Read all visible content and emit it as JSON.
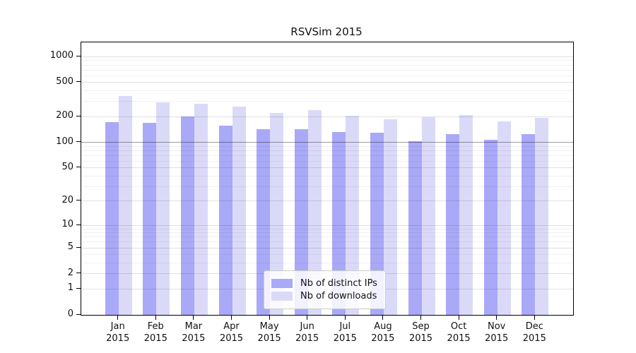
{
  "title": "RSVSim 2015",
  "chart_data": {
    "type": "bar",
    "title": "RSVSim 2015",
    "categories": [
      "Jan 2015",
      "Feb 2015",
      "Mar 2015",
      "Apr 2015",
      "May 2015",
      "Jun 2015",
      "Jul 2015",
      "Aug 2015",
      "Sep 2015",
      "Oct 2015",
      "Nov 2015",
      "Dec 2015"
    ],
    "series": [
      {
        "name": "Nb of distinct IPs",
        "color": "#a9a9f7",
        "values": [
          172,
          171,
          200,
          156,
          144,
          142,
          133,
          130,
          104,
          125,
          108,
          125
        ]
      },
      {
        "name": "Nb of downloads",
        "color": "#dadaf8",
        "values": [
          348,
          292,
          283,
          262,
          221,
          238,
          206,
          187,
          197,
          207,
          177,
          192
        ]
      }
    ],
    "xlabel": "",
    "ylabel": "",
    "yscale": "log1p",
    "yticks": [
      0,
      1,
      2,
      5,
      10,
      20,
      50,
      100,
      200,
      500,
      1000
    ],
    "minor_gridlines": [
      3,
      4,
      6,
      7,
      8,
      9,
      30,
      40,
      60,
      70,
      80,
      90,
      300,
      400,
      600,
      700,
      800,
      900
    ],
    "emphasized_gridline": 100,
    "ylim": [
      0,
      1520
    ],
    "grid": true,
    "legend_position": "lower-center-inside"
  }
}
